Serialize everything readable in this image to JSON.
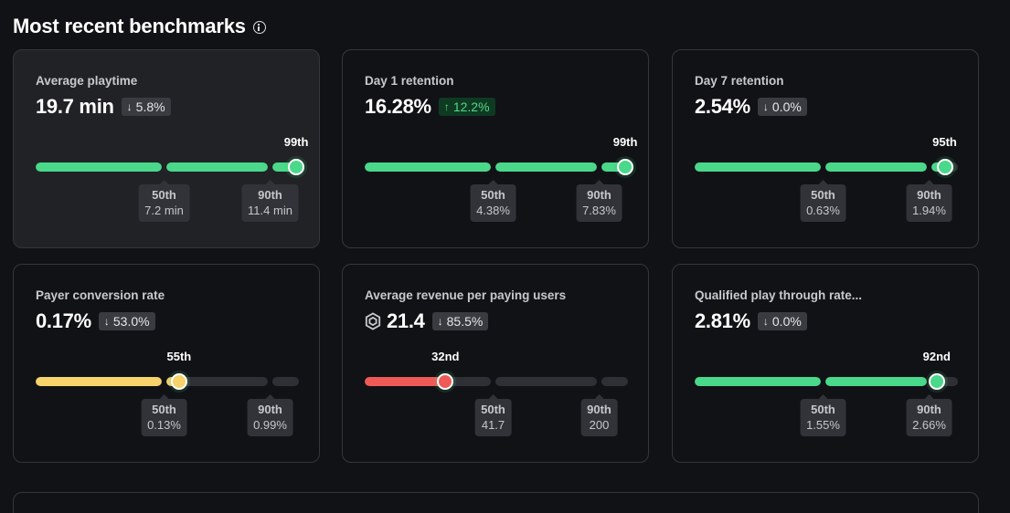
{
  "page": {
    "title": "Most recent benchmarks",
    "info_icon": "info-icon"
  },
  "colors": {
    "green": "#4ad88a",
    "yellow": "#f7d36b",
    "red": "#ef5a56",
    "track": "#2f3035",
    "up_badge_bg": "#0f3a22",
    "up_badge_fg": "#55d68a"
  },
  "cards": [
    {
      "title": "Average playtime",
      "value": "19.7 min",
      "icon": "",
      "delta": "5.8%",
      "delta_direction": "down",
      "rank_label": "99th",
      "percentile": 99,
      "status": "green",
      "p50": {
        "label": "50th",
        "value": "7.2 min"
      },
      "p90": {
        "label": "90th",
        "value": "11.4 min"
      },
      "active": true
    },
    {
      "title": "Day 1 retention",
      "value": "16.28%",
      "icon": "",
      "delta": "12.2%",
      "delta_direction": "up",
      "rank_label": "99th",
      "percentile": 99,
      "status": "green",
      "p50": {
        "label": "50th",
        "value": "4.38%"
      },
      "p90": {
        "label": "90th",
        "value": "7.83%"
      },
      "active": false
    },
    {
      "title": "Day 7 retention",
      "value": "2.54%",
      "icon": "",
      "delta": "0.0%",
      "delta_direction": "down",
      "rank_label": "95th",
      "percentile": 95,
      "status": "green",
      "p50": {
        "label": "50th",
        "value": "0.63%"
      },
      "p90": {
        "label": "90th",
        "value": "1.94%"
      },
      "active": false
    },
    {
      "title": "Payer conversion rate",
      "value": "0.17%",
      "icon": "",
      "delta": "53.0%",
      "delta_direction": "down",
      "rank_label": "55th",
      "percentile": 55,
      "status": "yellow",
      "p50": {
        "label": "50th",
        "value": "0.13%"
      },
      "p90": {
        "label": "90th",
        "value": "0.99%"
      },
      "active": false
    },
    {
      "title": "Average revenue per paying users",
      "value": "21.4",
      "icon": "robux-icon",
      "delta": "85.5%",
      "delta_direction": "down",
      "rank_label": "32nd",
      "percentile": 32,
      "status": "red",
      "p50": {
        "label": "50th",
        "value": "41.7"
      },
      "p90": {
        "label": "90th",
        "value": "200"
      },
      "active": false
    },
    {
      "title": "Qualified play through rate...",
      "value": "2.81%",
      "icon": "",
      "delta": "0.0%",
      "delta_direction": "down",
      "rank_label": "92nd",
      "percentile": 92,
      "status": "green",
      "p50": {
        "label": "50th",
        "value": "1.55%"
      },
      "p90": {
        "label": "90th",
        "value": "2.66%"
      },
      "active": false
    }
  ]
}
